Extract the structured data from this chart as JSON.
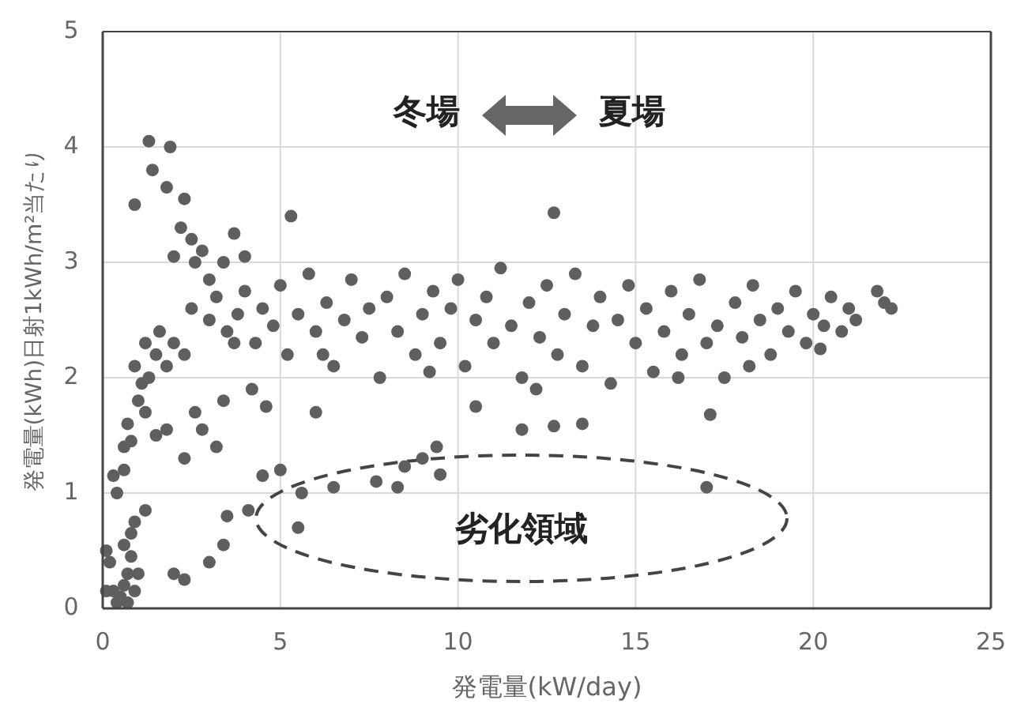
{
  "chart_data": {
    "type": "scatter",
    "xlabel": "発電量(kW/day)",
    "ylabel": "発電量(kWh)日射1kWh/m²当たり",
    "xlim": [
      0,
      25
    ],
    "xticks": [
      0,
      5,
      10,
      15,
      20,
      25
    ],
    "ylim": [
      0,
      5
    ],
    "yticks": [
      0,
      1,
      2,
      3,
      4,
      5
    ],
    "grid": true,
    "marker": "circle",
    "annotations": [
      "冬場",
      "夏場",
      "劣化領域"
    ],
    "series": [
      {
        "color": "#5f5f5f",
        "x": [
          0.1,
          0.1,
          0.2,
          0.3,
          0.5,
          0.6,
          0.7,
          0.8,
          0.8,
          0.9,
          0.7,
          0.9,
          0.4,
          1.0,
          0.6,
          0.4,
          0.3,
          0.6,
          0.8,
          0.7,
          1.0,
          1.1,
          0.9,
          1.3,
          1.5,
          1.2,
          1.8,
          2.0,
          2.3,
          1.6,
          1.2,
          1.5,
          0.6,
          1.3,
          1.9,
          0.9,
          1.8,
          2.2,
          2.5,
          1.4,
          2.6,
          3.0,
          2.8,
          2.3,
          2.0,
          3.7,
          5.3,
          3.4,
          4.0,
          1.8,
          2.3,
          2.8,
          3.2,
          2.6,
          3.4,
          4.2,
          4.6,
          5.0,
          4.5,
          5.6,
          6.0,
          3.5,
          4.1,
          5.5,
          2.3,
          3.0,
          3.4,
          2.0,
          1.2,
          8.3,
          9.0,
          9.4,
          8.5,
          9.5,
          12.7,
          13.5,
          17.0,
          17.1,
          7.7,
          6.5,
          11.8,
          10.5,
          12.7,
          2.5,
          3.0,
          3.2,
          3.5,
          3.8,
          4.0,
          4.3,
          4.5,
          4.8,
          5.0,
          5.2,
          5.5,
          5.8,
          6.0,
          6.3,
          6.5,
          6.8,
          7.0,
          7.3,
          7.5,
          7.8,
          8.0,
          8.3,
          8.5,
          8.8,
          9.0,
          9.3,
          9.5,
          9.8,
          10.0,
          10.2,
          10.5,
          10.8,
          11.0,
          11.2,
          11.5,
          11.8,
          12.0,
          12.3,
          12.5,
          12.8,
          13.0,
          13.3,
          13.5,
          13.8,
          14.0,
          14.3,
          14.5,
          14.8,
          15.0,
          15.3,
          15.5,
          15.8,
          16.0,
          16.3,
          16.5,
          16.8,
          17.0,
          17.3,
          17.5,
          17.8,
          18.0,
          18.3,
          18.5,
          18.8,
          19.0,
          19.3,
          19.5,
          19.8,
          20.0,
          20.3,
          20.5,
          20.8,
          21.0,
          21.2,
          21.8,
          22.0,
          22.2,
          20.2,
          18.2,
          16.2,
          12.2,
          9.2,
          6.2,
          3.7
        ],
        "values": [
          0.5,
          0.15,
          0.4,
          0.15,
          0.1,
          0.2,
          0.3,
          0.45,
          0.65,
          0.75,
          0.05,
          0.15,
          0.05,
          0.3,
          0.55,
          1.0,
          1.15,
          1.2,
          1.45,
          1.6,
          1.8,
          1.95,
          2.1,
          2.0,
          2.2,
          2.3,
          2.1,
          2.3,
          2.2,
          2.4,
          1.7,
          1.5,
          1.4,
          4.05,
          4.0,
          3.5,
          3.65,
          3.3,
          3.2,
          3.8,
          3.0,
          2.85,
          3.1,
          3.55,
          3.05,
          3.25,
          3.4,
          3.0,
          3.05,
          1.55,
          1.3,
          1.55,
          1.4,
          1.7,
          1.8,
          1.9,
          1.75,
          1.2,
          1.15,
          1.0,
          1.7,
          0.8,
          0.85,
          0.7,
          0.25,
          0.4,
          0.55,
          0.3,
          0.85,
          1.05,
          1.3,
          1.4,
          1.23,
          1.16,
          1.58,
          1.6,
          1.05,
          1.68,
          1.1,
          1.05,
          1.55,
          1.75,
          3.43,
          2.6,
          2.5,
          2.7,
          2.4,
          2.55,
          2.75,
          2.3,
          2.6,
          2.45,
          2.8,
          2.2,
          2.55,
          2.9,
          2.4,
          2.65,
          2.1,
          2.5,
          2.85,
          2.35,
          2.6,
          2.0,
          2.7,
          2.4,
          2.9,
          2.2,
          2.55,
          2.75,
          2.3,
          2.6,
          2.85,
          2.1,
          2.5,
          2.7,
          2.3,
          2.95,
          2.45,
          2.0,
          2.65,
          2.35,
          2.8,
          2.2,
          2.55,
          2.9,
          2.1,
          2.45,
          2.7,
          1.95,
          2.5,
          2.8,
          2.3,
          2.6,
          2.05,
          2.4,
          2.75,
          2.2,
          2.55,
          2.85,
          2.3,
          2.45,
          2.0,
          2.65,
          2.35,
          2.8,
          2.5,
          2.2,
          2.6,
          2.4,
          2.75,
          2.3,
          2.55,
          2.45,
          2.7,
          2.4,
          2.6,
          2.5,
          2.75,
          2.65,
          2.6,
          2.25,
          2.1,
          2.0,
          1.9,
          2.05,
          2.2,
          2.3
        ]
      }
    ]
  }
}
